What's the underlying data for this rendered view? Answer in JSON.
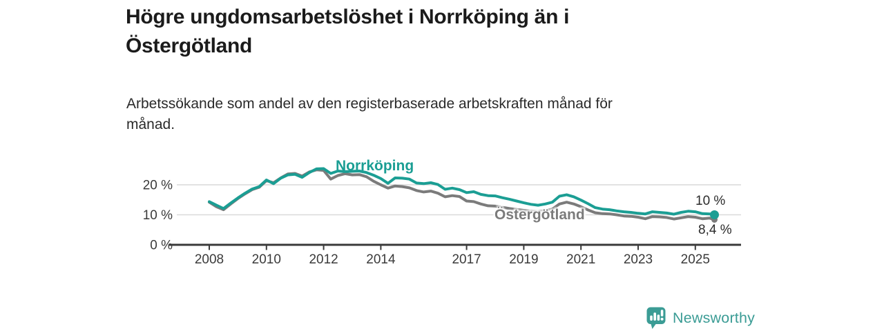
{
  "header": {
    "title_lines": [
      "Högre ungdomsarbetslöshet i Norrköping än i",
      "Östergötland"
    ],
    "subtitle_lines": [
      "Arbetssökande som andel av den registerbaserade arbetskraften månad för",
      "månad."
    ]
  },
  "chart_data": {
    "type": "line",
    "title": "Högre ungdomsarbetslöshet i Norrköping än i Östergötland",
    "subtitle": "Arbetssökande som andel av den registerbaserade arbetskraften månad för månad.",
    "x_unit": "decimal_year",
    "xlim": [
      2006.6,
      2026.6
    ],
    "ylim": [
      0,
      28
    ],
    "grid": "horizontal",
    "legend_position": "inline-labels",
    "x": [
      2008.0,
      2008.25,
      2008.5,
      2008.75,
      2009.0,
      2009.25,
      2009.5,
      2009.75,
      2010.0,
      2010.25,
      2010.5,
      2010.75,
      2011.0,
      2011.25,
      2011.5,
      2011.75,
      2012.0,
      2012.25,
      2012.5,
      2012.75,
      2013.0,
      2013.25,
      2013.5,
      2013.75,
      2014.0,
      2014.25,
      2014.5,
      2014.75,
      2015.0,
      2015.25,
      2015.5,
      2015.75,
      2016.0,
      2016.25,
      2016.5,
      2016.75,
      2017.0,
      2017.25,
      2017.5,
      2017.75,
      2018.0,
      2018.25,
      2018.5,
      2018.75,
      2019.0,
      2019.25,
      2019.5,
      2019.75,
      2020.0,
      2020.25,
      2020.5,
      2020.75,
      2021.0,
      2021.25,
      2021.5,
      2021.75,
      2022.0,
      2022.25,
      2022.5,
      2022.75,
      2023.0,
      2023.25,
      2023.5,
      2023.75,
      2024.0,
      2024.25,
      2024.5,
      2024.75,
      2025.0,
      2025.25,
      2025.5,
      2025.67
    ],
    "series": [
      {
        "name": "Norrköping",
        "color": "#1b9e94",
        "end_label": "10 %",
        "end_value": 10.0,
        "values": [
          14.4,
          13.2,
          12.1,
          13.9,
          15.6,
          17.2,
          18.6,
          19.4,
          21.6,
          20.4,
          22.2,
          23.3,
          23.5,
          22.5,
          24.1,
          25.3,
          25.4,
          23.8,
          24.6,
          24.4,
          24.5,
          24.6,
          24.1,
          23.2,
          22.1,
          20.5,
          22.3,
          22.2,
          21.9,
          20.6,
          20.4,
          20.7,
          20.1,
          18.5,
          18.9,
          18.4,
          17.4,
          17.7,
          16.8,
          16.4,
          16.3,
          15.7,
          15.2,
          14.6,
          14.0,
          13.5,
          13.2,
          13.6,
          14.2,
          16.2,
          16.7,
          16.0,
          14.9,
          13.7,
          12.4,
          11.9,
          11.7,
          11.3,
          11.0,
          10.8,
          10.5,
          10.3,
          11.0,
          10.8,
          10.6,
          10.2,
          10.8,
          11.2,
          11.0,
          10.4,
          10.3,
          10.0
        ]
      },
      {
        "name": "Östergötland",
        "color": "#7b7b7b",
        "end_label": "8,4 %",
        "end_value": 8.4,
        "values": [
          14.2,
          12.7,
          11.7,
          13.6,
          15.4,
          17.0,
          18.4,
          19.2,
          21.4,
          20.7,
          22.3,
          23.6,
          23.8,
          22.9,
          24.3,
          25.0,
          24.8,
          21.9,
          23.1,
          23.7,
          23.3,
          23.4,
          22.7,
          21.2,
          20.0,
          18.9,
          19.6,
          19.4,
          19.0,
          18.1,
          17.6,
          17.9,
          17.2,
          16.0,
          16.4,
          16.1,
          14.6,
          14.4,
          13.6,
          13.0,
          12.9,
          12.5,
          12.1,
          11.8,
          11.5,
          11.2,
          11.1,
          11.4,
          11.9,
          13.6,
          14.2,
          13.6,
          12.7,
          11.6,
          10.7,
          10.4,
          10.3,
          10.0,
          9.6,
          9.5,
          9.2,
          8.7,
          9.4,
          9.3,
          9.1,
          8.6,
          9.0,
          9.4,
          9.2,
          8.7,
          8.9,
          8.4
        ]
      }
    ],
    "xticks": [
      {
        "value": 2008,
        "label": "2008"
      },
      {
        "value": 2010,
        "label": "2010"
      },
      {
        "value": 2012,
        "label": "2012"
      },
      {
        "value": 2014,
        "label": "2014"
      },
      {
        "value": 2017,
        "label": "2017"
      },
      {
        "value": 2019,
        "label": "2019"
      },
      {
        "value": 2021,
        "label": "2021"
      },
      {
        "value": 2023,
        "label": "2023"
      },
      {
        "value": 2025,
        "label": "2025"
      }
    ],
    "yticks": [
      {
        "value": 0,
        "label": "0 %"
      },
      {
        "value": 10,
        "label": "10 %"
      },
      {
        "value": 20,
        "label": "20 %"
      }
    ]
  },
  "colors": {
    "accent_teal": "#1b9e94",
    "series_gray": "#7b7b7b",
    "axis": "#3a3a3a",
    "gridline": "#d9d9d9",
    "brand_teal": "#3b9c95"
  },
  "footer": {
    "brand": "Newsworthy",
    "logo_icon": "bar-chart-speech-bubble-icon"
  }
}
